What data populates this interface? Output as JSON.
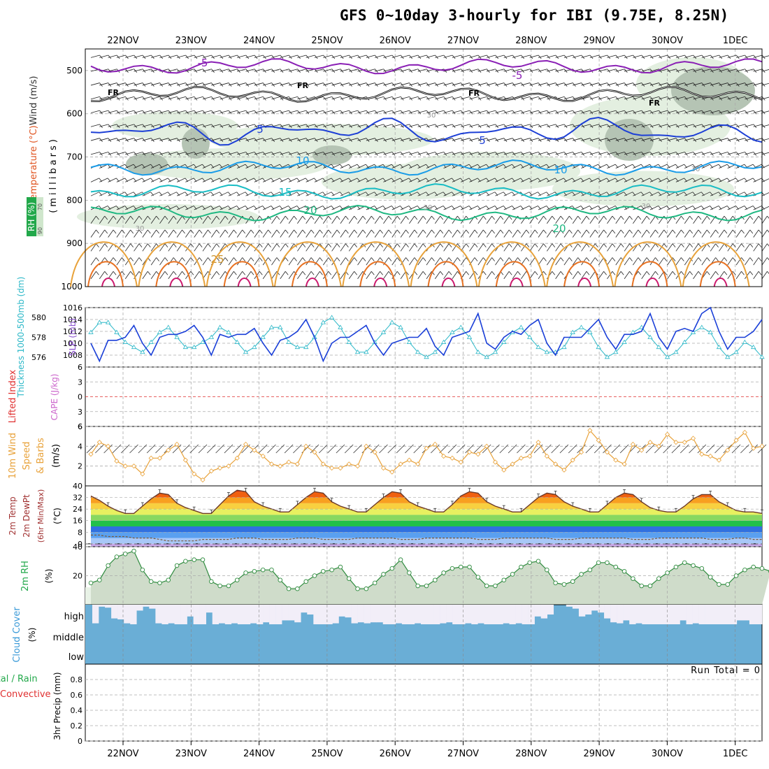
{
  "title": "GFS 0~10day 3-hourly for IBI (9.75E, 8.25N)",
  "dates": [
    "22NOV",
    "23NOV",
    "24NOV",
    "25NOV",
    "26NOV",
    "27NOV",
    "28NOV",
    "29NOV",
    "30NOV",
    "1DEC"
  ],
  "run_total": "Run Total = 0",
  "colors": {
    "purple": "#8a1fb5",
    "black": "#000000",
    "blue": "#1d3fd6",
    "skyblue": "#1a9ce8",
    "teal": "#18bcc4",
    "green": "#1fb882",
    "orange": "#e8a23a",
    "red": "#e05522",
    "rhgreen": "#2e8b3e",
    "cloud": "#6aaed6",
    "cape": "#cc66cc",
    "li": "#e03030"
  },
  "chart_data": [
    {
      "type": "line",
      "name": "upper-air",
      "ylabel": "(millibars)",
      "ylim": [
        1000,
        450
      ],
      "yticks": [
        500,
        600,
        700,
        800,
        900,
        1000
      ],
      "side_labels": [
        "Temperature (°C)",
        "Wind (m/s)",
        "RH (%)"
      ],
      "rh_ticks": [
        "70",
        "90"
      ],
      "isotherm_labels": [
        "-5",
        "FR",
        "5",
        "10",
        "15",
        "20",
        "25"
      ],
      "rh_contour_labels": [
        "30",
        "30",
        "30",
        "30",
        "30"
      ],
      "isotherms": [
        {
          "label": "-5",
          "level": 490,
          "color": "purple"
        },
        {
          "label": "FR",
          "level": 555,
          "color": "black"
        },
        {
          "label": "5",
          "level": 640,
          "color": "blue"
        },
        {
          "label": "10",
          "level": 725,
          "color": "skyblue"
        },
        {
          "label": "15",
          "level": 780,
          "color": "teal"
        },
        {
          "label": "20",
          "level": 830,
          "color": "green"
        }
      ]
    },
    {
      "type": "line",
      "name": "slp-thickness",
      "series": [
        {
          "name": "SLP (mb)",
          "axis": "right",
          "values": [
            1010,
            1007,
            1010.5,
            1010.5,
            1011,
            1013,
            1010,
            1008,
            1011,
            1011.5,
            1011.5,
            1012,
            1013,
            1011,
            1008,
            1011.5,
            1011,
            1011.5,
            1011.5,
            1012.5,
            1010,
            1008,
            1010.5,
            1011,
            1012,
            1014,
            1011,
            1007,
            1010,
            1011,
            1011,
            1012,
            1013,
            1010,
            1008,
            1010,
            1010.5,
            1011,
            1011,
            1012.5,
            1009.5,
            1008,
            1011,
            1011.5,
            1012,
            1015,
            1010,
            1009,
            1011,
            1012,
            1011.5,
            1013,
            1014,
            1010,
            1008,
            1011,
            1011,
            1011,
            1012.5,
            1014,
            1011,
            1009,
            1011.5,
            1011.5,
            1012,
            1015,
            1011,
            1009,
            1012,
            1012.5,
            1012,
            1015,
            1016,
            1012,
            1009,
            1011,
            1011,
            1012,
            1014
          ]
        },
        {
          "name": "Thickness 1000-500mb (dm)",
          "axis": "left",
          "values": [
            578.5,
            579.5,
            579.5,
            578.5,
            577.5,
            577,
            576.5,
            577.5,
            578.5,
            579,
            578,
            577,
            577,
            577.5,
            578,
            579,
            578.5,
            577.5,
            576.5,
            577,
            578,
            579,
            579,
            577.5,
            577,
            577,
            578,
            579.5,
            580,
            579,
            577.5,
            576.5,
            576.5,
            577.5,
            578.5,
            579.5,
            579,
            577.5,
            576.5,
            576,
            576.5,
            577.5,
            578.5,
            579,
            578,
            576.5,
            576,
            576.5,
            577.5,
            578.5,
            579,
            578,
            577,
            576.5,
            576.5,
            577,
            578.5,
            579,
            578.5,
            577,
            576,
            576.5,
            577.5,
            578.5,
            579,
            578,
            577,
            576,
            576.5,
            577.5,
            578.5,
            579,
            578.5,
            577,
            576,
            576.5,
            577.5,
            577,
            576
          ]
        }
      ],
      "ylim_left": [
        575,
        581
      ],
      "left_ticks": [
        576,
        578,
        580
      ],
      "ylim_right": [
        1006,
        1016
      ],
      "right_ticks": [
        1008,
        1010,
        1012,
        1014,
        1016
      ]
    },
    {
      "type": "line",
      "name": "cape-li",
      "ylabels": [
        "Lifted Index",
        "CAPE (J/kg)"
      ],
      "yticks": [
        -6,
        -3,
        0,
        3,
        6
      ],
      "tick_labels": [
        "6",
        "3",
        "0",
        "3",
        "6"
      ],
      "ylim": [
        -6,
        6
      ],
      "values": []
    },
    {
      "type": "line",
      "name": "wind10m",
      "ylabels": [
        "10m Wind",
        "Speed",
        "& Barbs",
        "(m/s)"
      ],
      "yticks": [
        2,
        4,
        6
      ],
      "ylim": [
        0,
        6
      ],
      "values": [
        3.2,
        4.4,
        4.0,
        2.5,
        2.0,
        2.0,
        1.2,
        2.8,
        2.8,
        3.6,
        4.2,
        2.6,
        1.2,
        0.6,
        1.5,
        1.8,
        2.0,
        2.8,
        4.2,
        3.6,
        3.0,
        2.2,
        2.0,
        2.4,
        2.2,
        4.0,
        3.4,
        2.2,
        1.8,
        1.8,
        2.2,
        2.0,
        4.0,
        3.4,
        1.8,
        1.4,
        2.2,
        2.6,
        2.2,
        3.8,
        4.2,
        3.0,
        2.8,
        2.4,
        3.4,
        3.2,
        4.0,
        2.4,
        1.6,
        2.2,
        2.8,
        3.0,
        4.4,
        3.0,
        2.2,
        1.6,
        2.6,
        3.4,
        5.6,
        4.6,
        3.4,
        2.6,
        2.2,
        4.2,
        3.6,
        4.4,
        4.0,
        5.2,
        4.4,
        4.4,
        4.8,
        3.2,
        3.0,
        2.6,
        3.6,
        4.6,
        5.4,
        3.8,
        4.0
      ]
    },
    {
      "type": "area",
      "name": "temp2m",
      "ylabels": [
        "2m Temp",
        "2m DewPt",
        "(6hr Min/Max)",
        "(°C)"
      ],
      "yticks": [
        0,
        8,
        16,
        24,
        32,
        40
      ],
      "ylim": [
        -2,
        40
      ],
      "values": [
        33,
        30,
        26,
        23,
        21,
        21,
        26,
        31,
        35,
        34,
        28,
        25,
        23,
        21,
        21,
        27,
        33,
        37,
        36,
        29,
        26,
        24,
        22,
        22,
        27,
        32,
        36,
        35,
        29,
        26,
        24,
        22,
        22,
        27,
        32,
        36,
        35,
        29,
        26,
        24,
        22,
        22,
        27,
        33,
        36,
        35,
        29,
        26,
        24,
        22,
        22,
        27,
        32,
        35,
        34,
        29,
        26,
        24,
        22,
        22,
        27,
        32,
        35,
        34,
        29,
        25,
        23,
        22,
        22,
        26,
        31,
        34,
        34,
        29,
        26,
        23,
        22,
        22,
        21
      ],
      "dewpoint": [
        6,
        6,
        5,
        5,
        5,
        4,
        4,
        4,
        3,
        2,
        2,
        2,
        2,
        3,
        3,
        3,
        3,
        4,
        4,
        4,
        3,
        3,
        3,
        3,
        4,
        4,
        4,
        3,
        3,
        3,
        3,
        4,
        4,
        4,
        4,
        4,
        3,
        3,
        3,
        4,
        4,
        4,
        4,
        4,
        4,
        3,
        3,
        3,
        4,
        4,
        4,
        4,
        4,
        4,
        3,
        3,
        3,
        4,
        4,
        4,
        4,
        4,
        4,
        3,
        3,
        3,
        4,
        4,
        4,
        4,
        4,
        4,
        3,
        3,
        3,
        4,
        4,
        3,
        3
      ]
    },
    {
      "type": "area",
      "name": "rh2m",
      "ylabels": [
        "2m RH",
        "(%)"
      ],
      "yticks": [
        20,
        40
      ],
      "ylim": [
        0,
        40
      ],
      "values": [
        15,
        17,
        27,
        33,
        35,
        37,
        24,
        16,
        15,
        17,
        27,
        30,
        31,
        31,
        16,
        13,
        13,
        17,
        22,
        23,
        24,
        24,
        17,
        11,
        11,
        16,
        20,
        23,
        24,
        26,
        18,
        11,
        11,
        15,
        21,
        25,
        31,
        22,
        13,
        13,
        17,
        22,
        25,
        26,
        26,
        19,
        13,
        13,
        17,
        21,
        26,
        29,
        30,
        24,
        15,
        14,
        16,
        21,
        24,
        29,
        29,
        26,
        23,
        18,
        13,
        13,
        18,
        22,
        26,
        29,
        27,
        25,
        19,
        14,
        14,
        20,
        24,
        26,
        25,
        23
      ]
    },
    {
      "type": "bar",
      "name": "cloud-cover",
      "ylabels": [
        "Cloud Cover",
        "(%)"
      ],
      "levels": [
        "high",
        "middle",
        "low"
      ],
      "high_values": [
        5,
        90,
        85,
        30,
        25,
        5,
        0,
        70,
        90,
        80,
        5,
        0,
        5,
        0,
        0,
        40,
        0,
        0,
        60,
        0,
        5,
        0,
        5,
        0,
        0,
        5,
        0,
        10,
        0,
        0,
        20,
        20,
        10,
        60,
        50,
        0,
        0,
        0,
        5,
        40,
        35,
        5,
        10,
        5,
        10,
        10,
        0,
        0,
        5,
        0,
        0,
        5,
        0,
        0,
        0,
        5,
        10,
        0,
        0,
        5,
        0,
        5,
        0,
        0,
        0,
        5,
        0,
        5,
        0,
        0,
        40,
        30,
        50,
        100,
        100,
        90,
        80,
        40,
        50,
        70,
        60,
        30,
        10,
        5,
        20,
        0,
        5,
        0,
        0,
        0,
        0,
        0,
        0,
        20,
        0,
        5,
        0,
        0,
        0,
        0,
        0,
        0,
        20,
        20,
        0,
        0
      ]
    },
    {
      "type": "bar",
      "name": "precip3hr",
      "ylabels": [
        "3hr Precip (mm)",
        "Total / Rain",
        "Convective"
      ],
      "yticks": [
        0,
        0.2,
        0.4,
        0.6,
        0.8
      ],
      "tick_labels": [
        "0",
        "0.2",
        "0.4",
        "0.6",
        "0.8"
      ],
      "ylim": [
        0,
        1
      ],
      "values": []
    }
  ]
}
